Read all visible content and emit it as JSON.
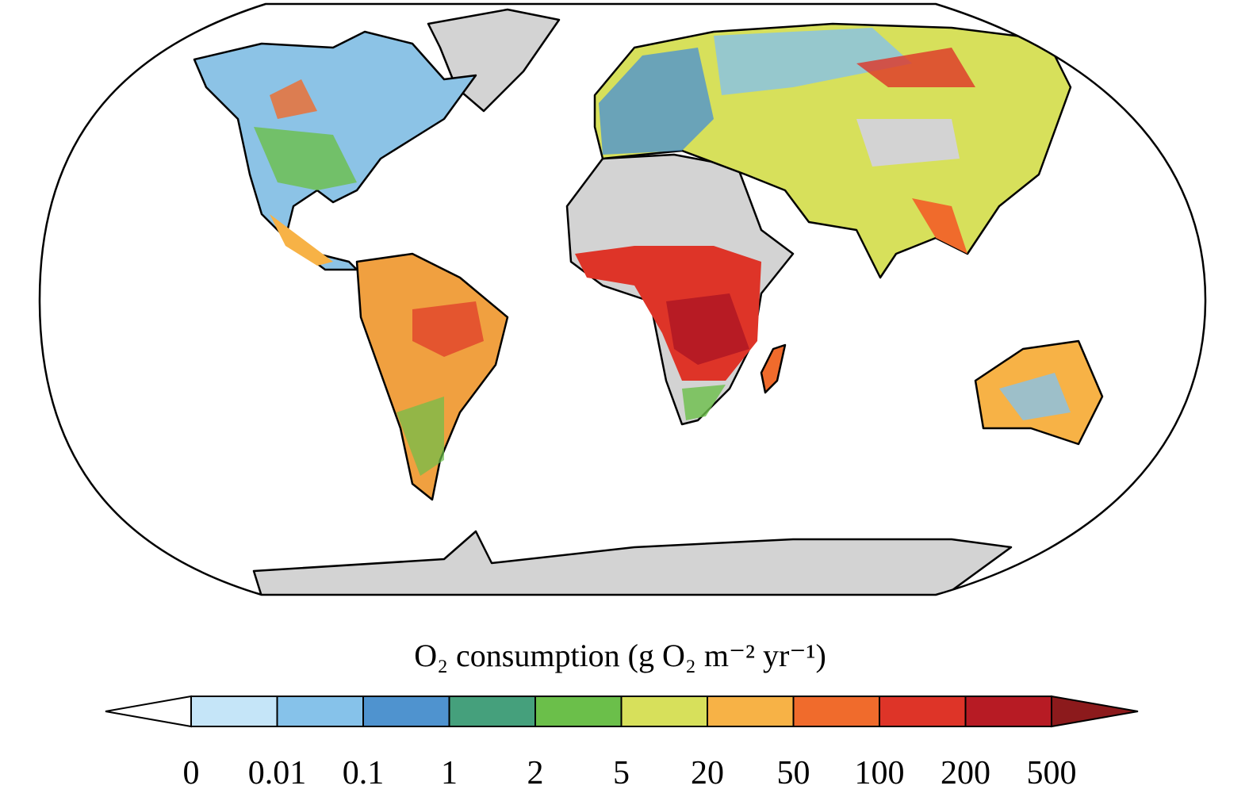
{
  "legend": {
    "title": "O₂ consumption (g O₂ m⁻² yr⁻¹)",
    "ticks": [
      0,
      0.01,
      0.1,
      1,
      2,
      5,
      20,
      50,
      100,
      200,
      500
    ],
    "colors": [
      "#c5e5f8",
      "#86c2ea",
      "#4f93cf",
      "#45a07c",
      "#6bbf4a",
      "#d7e05b",
      "#f7b246",
      "#f06b2c",
      "#de3428",
      "#b71b24"
    ],
    "under_color": "#ffffff",
    "over_color": "#8c1a1c"
  }
}
